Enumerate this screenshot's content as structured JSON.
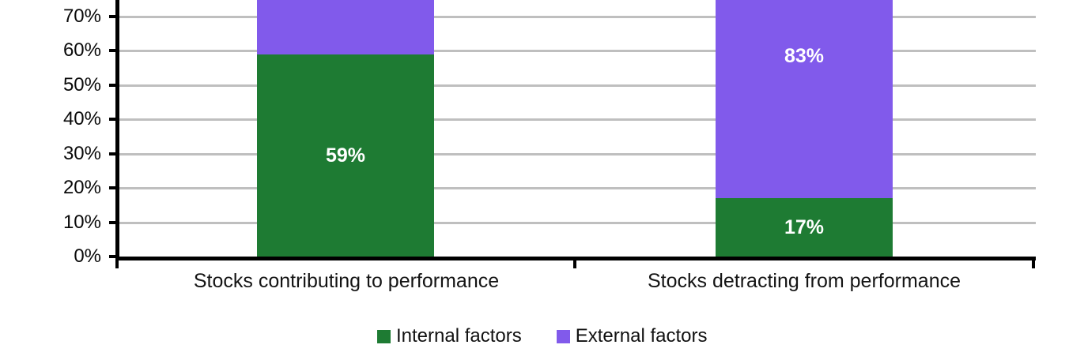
{
  "chart_data": {
    "type": "bar",
    "variant": "stacked-100-percent",
    "title": "",
    "categories": [
      "Stocks contributing to performance",
      "Stocks detracting from performance"
    ],
    "series": [
      {
        "name": "Internal factors",
        "color": "#1E7B33",
        "values": [
          59,
          17
        ],
        "data_labels": [
          "59%",
          "17%"
        ]
      },
      {
        "name": "External factors",
        "color": "#815AEB",
        "values": [
          41,
          83
        ],
        "data_labels": [
          null,
          "83%"
        ]
      }
    ],
    "y_axis": {
      "tick_labels": [
        "0%",
        "10%",
        "20%",
        "30%",
        "40%",
        "50%",
        "60%",
        "70%"
      ],
      "tick_values": [
        0,
        10,
        20,
        30,
        40,
        50,
        60,
        70
      ],
      "visible_top_value_pct": 75,
      "gridlines": true
    },
    "legend": {
      "position": "bottom",
      "entries": [
        {
          "label": "Internal factors",
          "color": "#1E7B33"
        },
        {
          "label": "External factors",
          "color": "#815AEB"
        }
      ]
    },
    "colors": {
      "data_label": "#FFFFFF",
      "axis": "#000000",
      "gridline": "#BFBFBF",
      "text": "#141414",
      "background": "#FFFFFF"
    }
  }
}
